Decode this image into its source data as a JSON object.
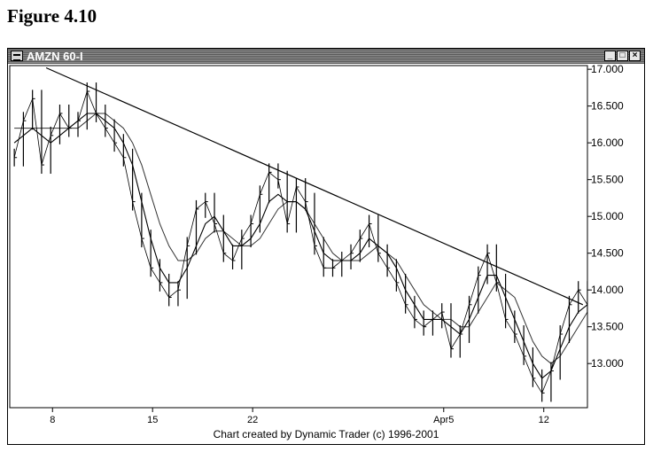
{
  "figure_title": "Figure 4.10",
  "window": {
    "title": "AMZN 60-I",
    "min_label": "_",
    "max_label": "□",
    "close_label": "×"
  },
  "credit": "Chart created by Dynamic Trader (c) 1996-2001",
  "colors": {
    "price": "#000000",
    "ma_fast": "#000000",
    "ma_slow": "#333333",
    "trendline": "#000000"
  },
  "chart_data": {
    "type": "line",
    "title": "",
    "xlabel": "",
    "ylabel": "",
    "x_tick_labels": [
      "8",
      "15",
      "22",
      "Apr5",
      "12"
    ],
    "y_tick_labels": [
      "17.000",
      "16.500",
      "16.000",
      "15.500",
      "15.000",
      "14.500",
      "14.000",
      "13.500",
      "13.000"
    ],
    "y_ticks": [
      17.0,
      16.5,
      16.0,
      15.5,
      15.0,
      14.5,
      14.0,
      13.5,
      13.0
    ],
    "ylim": [
      12.4,
      17.05
    ],
    "x_ticks": [
      4.7,
      15.7,
      26.7,
      47.7,
      58.7
    ],
    "xlim": [
      0,
      63.5
    ],
    "grid": false,
    "legend": "none",
    "series": [
      {
        "role": "price",
        "values": [
          15.8,
          16.3,
          16.6,
          15.7,
          16.1,
          16.4,
          16.2,
          16.3,
          16.7,
          16.4,
          16.2,
          16.0,
          15.8,
          15.2,
          14.7,
          14.3,
          14.1,
          13.9,
          14.0,
          14.6,
          15.1,
          15.2,
          14.9,
          14.5,
          14.4,
          14.7,
          14.9,
          15.3,
          15.6,
          15.5,
          14.9,
          15.4,
          15.2,
          14.6,
          14.3,
          14.3,
          14.4,
          14.5,
          14.7,
          14.9,
          14.5,
          14.3,
          14.1,
          13.8,
          13.6,
          13.5,
          13.6,
          13.7,
          13.2,
          13.4,
          13.8,
          14.2,
          14.5,
          14.1,
          13.6,
          13.4,
          13.1,
          12.8,
          12.6,
          12.9,
          13.4,
          13.8,
          14.0,
          13.8
        ]
      },
      {
        "role": "moving-average-fast",
        "values": [
          16.0,
          16.1,
          16.2,
          16.1,
          16.0,
          16.1,
          16.2,
          16.3,
          16.4,
          16.4,
          16.3,
          16.2,
          16.0,
          15.7,
          15.2,
          14.7,
          14.3,
          14.1,
          14.1,
          14.3,
          14.6,
          14.9,
          15.0,
          14.8,
          14.6,
          14.6,
          14.7,
          14.9,
          15.2,
          15.3,
          15.2,
          15.2,
          15.1,
          14.8,
          14.5,
          14.4,
          14.4,
          14.4,
          14.5,
          14.7,
          14.6,
          14.5,
          14.3,
          14.0,
          13.8,
          13.6,
          13.6,
          13.6,
          13.5,
          13.4,
          13.6,
          13.9,
          14.2,
          14.2,
          13.9,
          13.6,
          13.3,
          13.0,
          12.8,
          12.9,
          13.2,
          13.5,
          13.7,
          13.8
        ]
      },
      {
        "role": "moving-average-slow",
        "values": [
          16.2,
          16.2,
          16.2,
          16.2,
          16.2,
          16.2,
          16.2,
          16.2,
          16.3,
          16.4,
          16.4,
          16.3,
          16.2,
          16.0,
          15.7,
          15.3,
          14.9,
          14.6,
          14.4,
          14.4,
          14.5,
          14.7,
          14.8,
          14.8,
          14.7,
          14.6,
          14.6,
          14.7,
          14.9,
          15.1,
          15.2,
          15.2,
          15.1,
          14.9,
          14.7,
          14.5,
          14.4,
          14.4,
          14.4,
          14.5,
          14.6,
          14.5,
          14.4,
          14.2,
          14.0,
          13.8,
          13.7,
          13.6,
          13.6,
          13.5,
          13.5,
          13.7,
          13.9,
          14.1,
          14.0,
          13.9,
          13.6,
          13.3,
          13.1,
          13.0,
          13.1,
          13.3,
          13.5,
          13.7
        ]
      }
    ],
    "trendline": {
      "start": [
        4.0,
        17.02
      ],
      "end": [
        63.0,
        13.8
      ]
    }
  }
}
